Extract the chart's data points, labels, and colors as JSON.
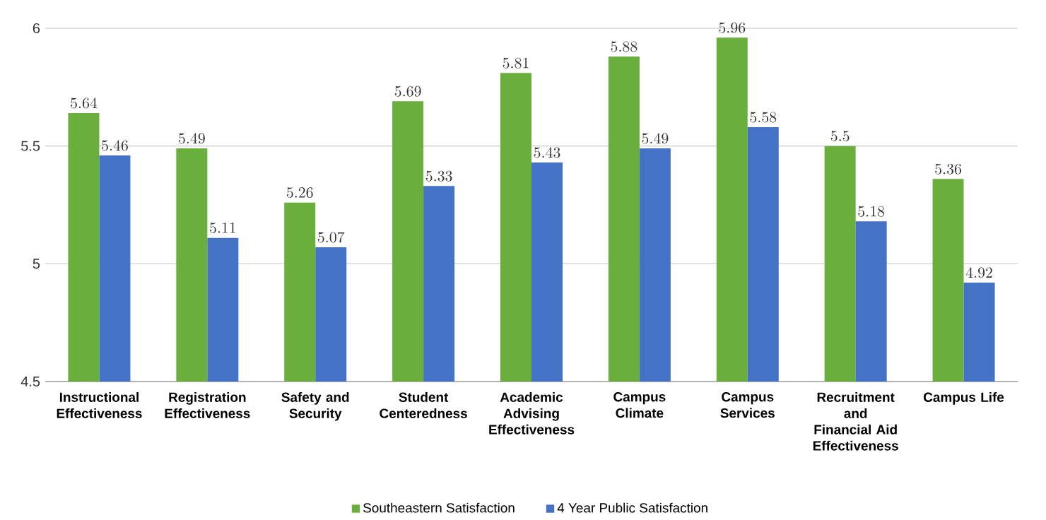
{
  "chart_data": {
    "type": "bar",
    "categories": [
      "Instructional Effectiveness",
      "Registration Effectiveness",
      "Safety and Security",
      "Student Centeredness",
      "Academic Advising Effectiveness",
      "Campus Climate",
      "Campus Services",
      "Recruitment and Financial Aid Effectiveness",
      "Campus Life"
    ],
    "series": [
      {
        "name": "Southeastern Satisfaction",
        "color": "#6aae3e",
        "values": [
          5.64,
          5.49,
          5.26,
          5.69,
          5.81,
          5.88,
          5.96,
          5.5,
          5.36
        ]
      },
      {
        "name": "4 Year Public Satisfaction",
        "color": "#4472c4",
        "values": [
          5.46,
          5.11,
          5.07,
          5.33,
          5.43,
          5.49,
          5.58,
          5.18,
          4.92
        ]
      }
    ],
    "ylim": [
      4.5,
      6
    ],
    "yticks": [
      4.5,
      5,
      5.5,
      6
    ],
    "grid": "y",
    "legend": "bottom",
    "data_labels": true
  }
}
